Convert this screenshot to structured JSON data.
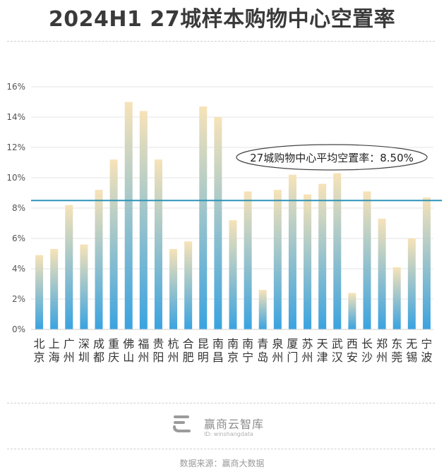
{
  "title": "2024H1 27城样本购物中心空置率",
  "footer": {
    "brand": "赢商云智库",
    "id_text": "ID: winshangdata",
    "source": "数据来源：赢商大数据"
  },
  "chart_data": {
    "type": "bar",
    "title": "2024H1 27城样本购物中心空置率",
    "categories": [
      "北京",
      "上海",
      "广州",
      "深圳",
      "成都",
      "重庆",
      "佛山",
      "福州",
      "贵阳",
      "杭州",
      "合肥",
      "昆明",
      "南昌",
      "南京",
      "南宁",
      "青岛",
      "泉州",
      "厦门",
      "苏州",
      "天津",
      "武汉",
      "西安",
      "长沙",
      "郑州",
      "东莞",
      "无锡",
      "宁波"
    ],
    "values": [
      4.9,
      5.3,
      8.2,
      5.6,
      9.2,
      11.2,
      15.0,
      14.4,
      11.2,
      5.3,
      5.8,
      14.7,
      14.0,
      7.2,
      9.1,
      2.6,
      9.2,
      10.2,
      8.9,
      9.6,
      10.3,
      2.4,
      9.1,
      7.3,
      4.1,
      6.0,
      8.7
    ],
    "y_ticks": [
      "0%",
      "2%",
      "4%",
      "6%",
      "8%",
      "10%",
      "12%",
      "14%",
      "16%"
    ],
    "ylim": [
      0,
      16
    ],
    "grid": true,
    "average": {
      "value": 8.5,
      "label": "27城购物中心平均空置率：8.50%"
    },
    "colors": {
      "bar_top": "#f7e3b8",
      "bar_bottom": "#3aa3e0",
      "avg_line": "#2f93b8",
      "grid": "#e6e6e6"
    }
  }
}
